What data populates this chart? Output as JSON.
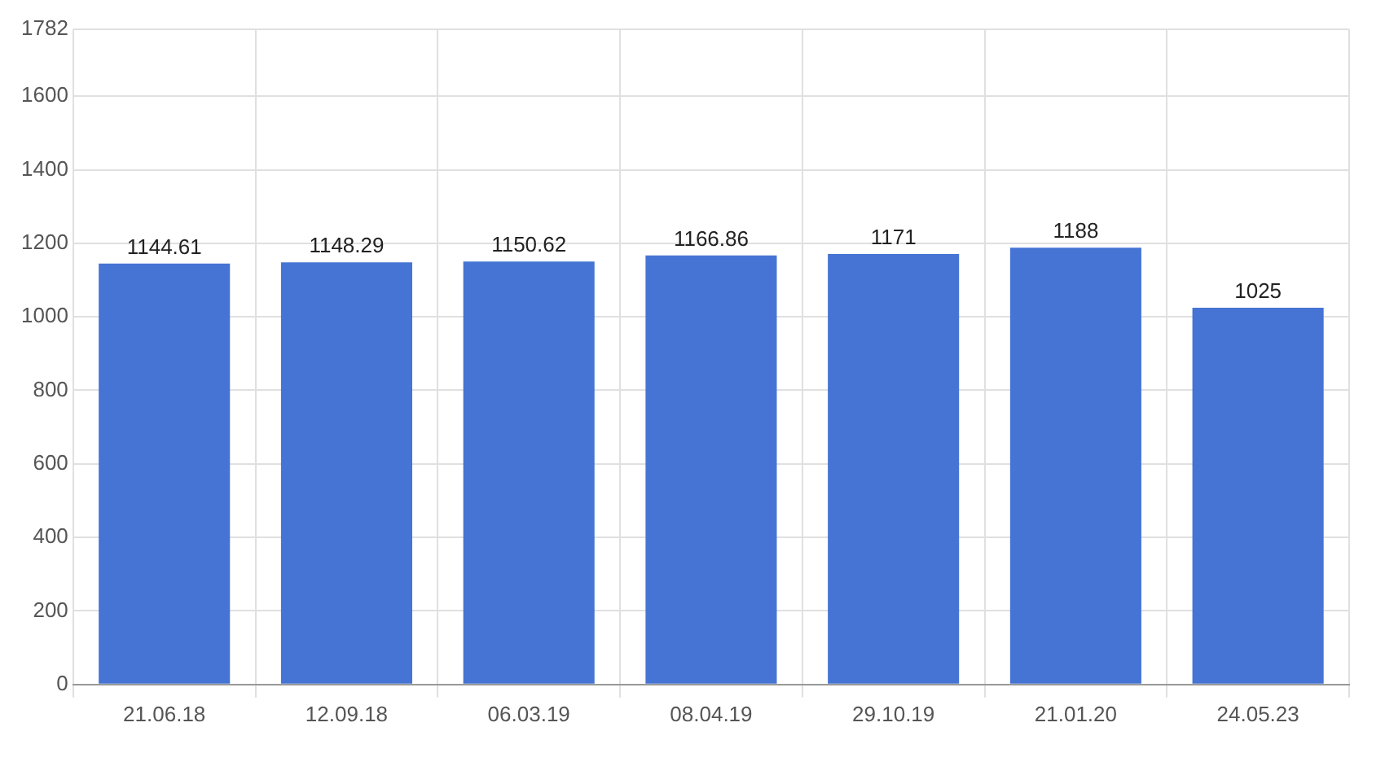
{
  "chart_data": {
    "type": "bar",
    "categories": [
      "21.06.18",
      "12.09.18",
      "06.03.19",
      "08.04.19",
      "29.10.19",
      "21.01.20",
      "24.05.23"
    ],
    "values": [
      1144.61,
      1148.29,
      1150.62,
      1166.86,
      1171,
      1188,
      1025
    ],
    "color": "#4674d4",
    "ylim": [
      0,
      1782
    ],
    "yticks": [
      0,
      200,
      400,
      600,
      800,
      1000,
      1200,
      1400,
      1600,
      1782
    ],
    "grid": true,
    "data_labels": true
  }
}
